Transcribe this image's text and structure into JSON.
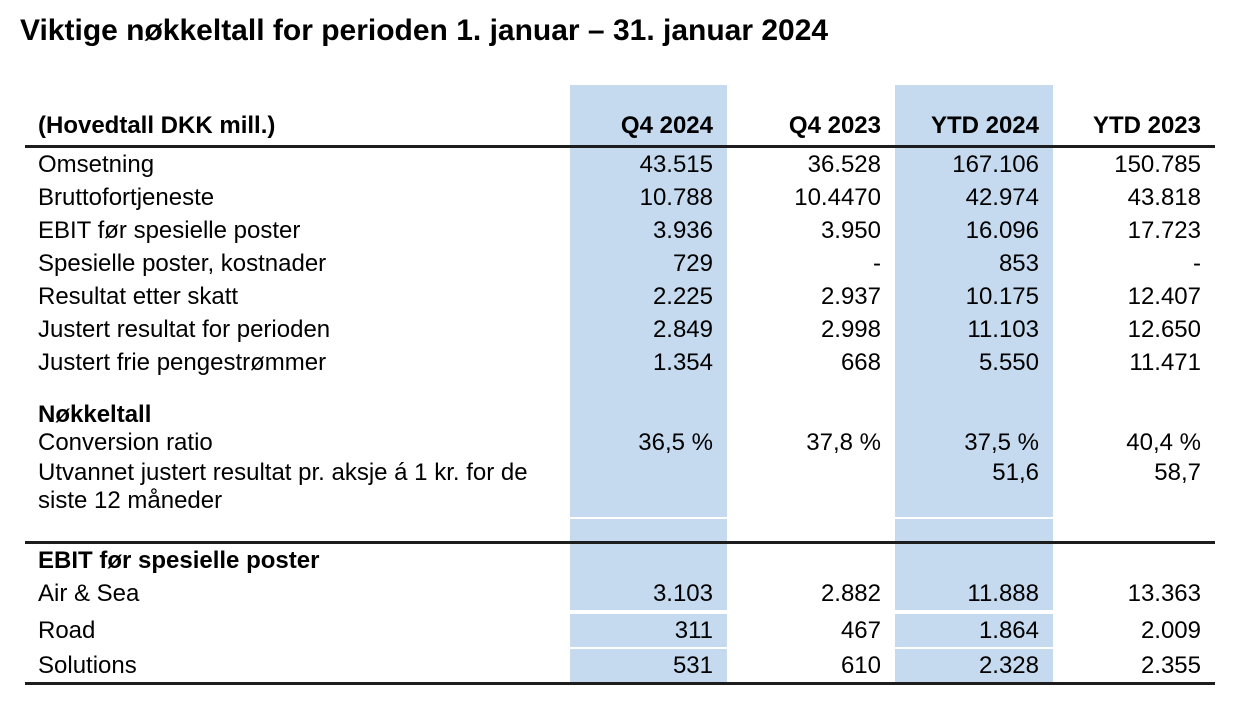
{
  "title": "Viktige nøkkeltall for perioden 1. januar – 31. januar 2024",
  "colors": {
    "highlight_column": "#C5D9EF",
    "rule_line": "#1d1d1d",
    "text": "#000000",
    "background": "#ffffff"
  },
  "table": {
    "header": {
      "label_column": "(Hovedtall DKK mill.)",
      "columns": [
        {
          "key": "q4-2024",
          "label": "Q4 2024",
          "highlight": true
        },
        {
          "key": "q4-2023",
          "label": "Q4 2023",
          "highlight": false
        },
        {
          "key": "ytd-2024",
          "label": "YTD 2024",
          "highlight": true
        },
        {
          "key": "ytd-2023",
          "label": "YTD 2023",
          "highlight": false
        }
      ]
    },
    "rows": [
      {
        "label": "Omsetning",
        "values": [
          "43.515",
          "36.528",
          "167.106",
          "150.785"
        ]
      },
      {
        "label": "Bruttofortjeneste",
        "values": [
          "10.788",
          "10.4470",
          "42.974",
          "43.818"
        ]
      },
      {
        "label": "EBIT før spesielle poster",
        "values": [
          "3.936",
          "3.950",
          "16.096",
          "17.723"
        ]
      },
      {
        "label": "Spesielle poster, kostnader",
        "values": [
          "729",
          "-",
          "853",
          "-"
        ]
      },
      {
        "label": "Resultat etter skatt",
        "values": [
          "2.225",
          "2.937",
          "10.175",
          "12.407"
        ]
      },
      {
        "label": "Justert resultat for perioden",
        "values": [
          "2.849",
          "2.998",
          "11.103",
          "12.650"
        ]
      },
      {
        "label": "Justert frie pengestrømmer",
        "values": [
          "1.354",
          "668",
          "5.550",
          "11.471"
        ]
      },
      {
        "kind": "spacer-plain"
      },
      {
        "label": "Nøkkeltall",
        "bold": true,
        "tight": true,
        "values": [
          "",
          "",
          "",
          ""
        ]
      },
      {
        "label": "Conversion ratio",
        "tight": true,
        "values": [
          "36,5 %",
          "37,8 %",
          "37,5 %",
          "40,4 %"
        ]
      },
      {
        "label": "Utvannet justert resultat pr. aksje á 1 kr. for de siste 12 måneder",
        "multiline": true,
        "values": [
          "",
          "",
          "51,6",
          "58,7"
        ]
      },
      {
        "kind": "spacer-gap"
      },
      {
        "label": "EBIT før spesielle poster",
        "bold": true,
        "divider": true,
        "values": [
          "",
          "",
          "",
          ""
        ]
      },
      {
        "label": "Air & Sea",
        "values": [
          "3.103",
          "2.882",
          "11.888",
          "13.363"
        ]
      },
      {
        "label": "Road",
        "sep": "thick",
        "values": [
          "311",
          "467",
          "1.864",
          "2.009"
        ]
      },
      {
        "label": "Solutions",
        "sep": "thin",
        "values": [
          "531",
          "610",
          "2.328",
          "2.355"
        ]
      }
    ]
  }
}
